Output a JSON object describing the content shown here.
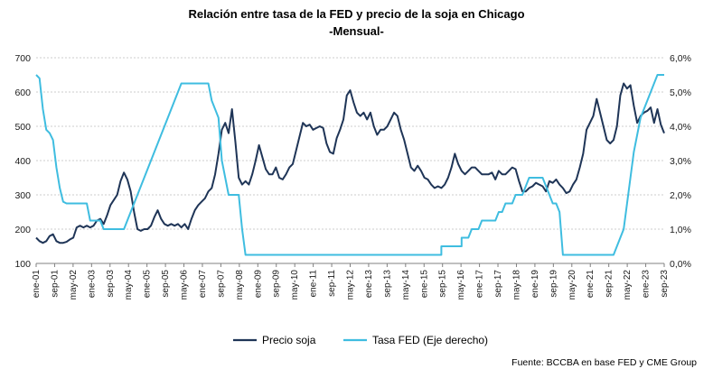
{
  "chart_data": {
    "type": "line",
    "title": "Relación entre tasa de la FED y precio de la soja en Chicago",
    "subtitle": "-Mensual-",
    "source": "Fuente: BCCBA en base FED y CME Group",
    "y_left": {
      "ylim": [
        100,
        700
      ],
      "ticks": [
        "100",
        "200",
        "300",
        "400",
        "500",
        "600",
        "700"
      ]
    },
    "y_right": {
      "ylim": [
        0,
        6
      ],
      "ticks": [
        "0,0%",
        "1,0%",
        "2,0%",
        "3,0%",
        "4,0%",
        "5,0%",
        "6,0%"
      ]
    },
    "x_ticks": [
      "ene-01",
      "sep-01",
      "may-02",
      "ene-03",
      "sep-03",
      "may-04",
      "ene-05",
      "sep-05",
      "may-06",
      "ene-07",
      "sep-07",
      "may-08",
      "ene-09",
      "sep-09",
      "may-10",
      "ene-11",
      "sep-11",
      "may-12",
      "ene-13",
      "sep-13",
      "may-14",
      "ene-15",
      "sep-15",
      "may-16",
      "ene-17",
      "sep-17",
      "may-18",
      "ene-19",
      "sep-19",
      "may-20",
      "ene-21",
      "sep-21",
      "may-22",
      "ene-23",
      "sep-23"
    ],
    "grid": "horizontal dashed",
    "legend_position": "bottom",
    "colors": {
      "soja": "#1f3557",
      "fed": "#3fbde0"
    },
    "series": [
      {
        "name": "Precio soja",
        "axis": "left",
        "points": [
          [
            0,
            175
          ],
          [
            2,
            165
          ],
          [
            4,
            160
          ],
          [
            6,
            165
          ],
          [
            8,
            180
          ],
          [
            10,
            185
          ],
          [
            12,
            165
          ],
          [
            14,
            160
          ],
          [
            16,
            160
          ],
          [
            18,
            163
          ],
          [
            20,
            170
          ],
          [
            22,
            175
          ],
          [
            24,
            205
          ],
          [
            26,
            210
          ],
          [
            28,
            205
          ],
          [
            30,
            210
          ],
          [
            32,
            205
          ],
          [
            34,
            210
          ],
          [
            36,
            225
          ],
          [
            38,
            230
          ],
          [
            40,
            215
          ],
          [
            42,
            240
          ],
          [
            44,
            270
          ],
          [
            46,
            285
          ],
          [
            48,
            300
          ],
          [
            50,
            340
          ],
          [
            52,
            365
          ],
          [
            54,
            345
          ],
          [
            56,
            310
          ],
          [
            58,
            250
          ],
          [
            60,
            200
          ],
          [
            62,
            195
          ],
          [
            64,
            200
          ],
          [
            66,
            200
          ],
          [
            68,
            210
          ],
          [
            70,
            235
          ],
          [
            72,
            255
          ],
          [
            74,
            230
          ],
          [
            76,
            215
          ],
          [
            78,
            210
          ],
          [
            80,
            215
          ],
          [
            82,
            210
          ],
          [
            84,
            215
          ],
          [
            86,
            205
          ],
          [
            88,
            215
          ],
          [
            90,
            200
          ],
          [
            92,
            230
          ],
          [
            94,
            255
          ],
          [
            96,
            270
          ],
          [
            98,
            280
          ],
          [
            100,
            290
          ],
          [
            102,
            310
          ],
          [
            104,
            320
          ],
          [
            106,
            360
          ],
          [
            108,
            420
          ],
          [
            110,
            490
          ],
          [
            112,
            510
          ],
          [
            114,
            480
          ],
          [
            116,
            550
          ],
          [
            118,
            455
          ],
          [
            120,
            350
          ],
          [
            122,
            330
          ],
          [
            124,
            340
          ],
          [
            126,
            330
          ],
          [
            128,
            360
          ],
          [
            130,
            400
          ],
          [
            132,
            445
          ],
          [
            134,
            410
          ],
          [
            136,
            375
          ],
          [
            138,
            360
          ],
          [
            140,
            360
          ],
          [
            142,
            380
          ],
          [
            144,
            350
          ],
          [
            146,
            345
          ],
          [
            148,
            360
          ],
          [
            150,
            380
          ],
          [
            152,
            390
          ],
          [
            154,
            430
          ],
          [
            156,
            470
          ],
          [
            158,
            510
          ],
          [
            160,
            500
          ],
          [
            162,
            505
          ],
          [
            164,
            490
          ],
          [
            166,
            495
          ],
          [
            168,
            500
          ],
          [
            170,
            495
          ],
          [
            172,
            450
          ],
          [
            174,
            425
          ],
          [
            176,
            420
          ],
          [
            178,
            465
          ],
          [
            180,
            490
          ],
          [
            182,
            520
          ],
          [
            184,
            590
          ],
          [
            186,
            605
          ],
          [
            188,
            570
          ],
          [
            190,
            540
          ],
          [
            192,
            530
          ],
          [
            194,
            540
          ],
          [
            196,
            520
          ],
          [
            198,
            540
          ],
          [
            200,
            500
          ],
          [
            202,
            475
          ],
          [
            204,
            490
          ],
          [
            206,
            490
          ],
          [
            208,
            500
          ],
          [
            210,
            520
          ],
          [
            212,
            540
          ],
          [
            214,
            530
          ],
          [
            216,
            490
          ],
          [
            218,
            460
          ],
          [
            220,
            420
          ],
          [
            222,
            380
          ],
          [
            224,
            370
          ],
          [
            226,
            385
          ],
          [
            228,
            370
          ],
          [
            230,
            350
          ],
          [
            232,
            345
          ],
          [
            234,
            330
          ],
          [
            236,
            320
          ],
          [
            238,
            325
          ],
          [
            240,
            320
          ],
          [
            242,
            330
          ],
          [
            244,
            350
          ],
          [
            246,
            380
          ],
          [
            248,
            420
          ],
          [
            250,
            390
          ],
          [
            252,
            370
          ],
          [
            254,
            360
          ],
          [
            256,
            370
          ],
          [
            258,
            380
          ],
          [
            260,
            380
          ],
          [
            262,
            370
          ],
          [
            264,
            360
          ],
          [
            266,
            360
          ],
          [
            268,
            360
          ],
          [
            270,
            365
          ],
          [
            272,
            345
          ],
          [
            274,
            370
          ],
          [
            276,
            360
          ],
          [
            278,
            360
          ],
          [
            280,
            370
          ],
          [
            282,
            380
          ],
          [
            284,
            375
          ],
          [
            286,
            340
          ],
          [
            288,
            310
          ],
          [
            290,
            310
          ],
          [
            292,
            320
          ],
          [
            294,
            325
          ],
          [
            296,
            335
          ],
          [
            298,
            330
          ],
          [
            300,
            325
          ],
          [
            302,
            310
          ],
          [
            304,
            340
          ],
          [
            306,
            335
          ],
          [
            308,
            345
          ],
          [
            310,
            330
          ],
          [
            312,
            320
          ],
          [
            314,
            305
          ],
          [
            316,
            310
          ],
          [
            318,
            330
          ],
          [
            320,
            345
          ],
          [
            322,
            380
          ],
          [
            324,
            420
          ],
          [
            326,
            490
          ],
          [
            328,
            510
          ],
          [
            330,
            530
          ],
          [
            332,
            580
          ],
          [
            334,
            540
          ],
          [
            336,
            500
          ],
          [
            338,
            460
          ],
          [
            340,
            450
          ],
          [
            342,
            460
          ],
          [
            344,
            500
          ],
          [
            346,
            590
          ],
          [
            348,
            625
          ],
          [
            350,
            610
          ],
          [
            352,
            620
          ],
          [
            354,
            560
          ],
          [
            356,
            510
          ],
          [
            358,
            530
          ],
          [
            360,
            540
          ],
          [
            362,
            545
          ],
          [
            364,
            555
          ],
          [
            366,
            510
          ],
          [
            368,
            550
          ],
          [
            370,
            505
          ],
          [
            372,
            480
          ]
        ]
      },
      {
        "name": "Tasa FED (Eje derecho)",
        "axis": "right",
        "points": [
          [
            0,
            5.5
          ],
          [
            2,
            5.4
          ],
          [
            4,
            4.5
          ],
          [
            6,
            3.9
          ],
          [
            8,
            3.8
          ],
          [
            10,
            3.6
          ],
          [
            12,
            2.8
          ],
          [
            14,
            2.2
          ],
          [
            16,
            1.8
          ],
          [
            18,
            1.75
          ],
          [
            20,
            1.75
          ],
          [
            22,
            1.75
          ],
          [
            24,
            1.75
          ],
          [
            26,
            1.75
          ],
          [
            28,
            1.75
          ],
          [
            30,
            1.75
          ],
          [
            32,
            1.25
          ],
          [
            34,
            1.25
          ],
          [
            36,
            1.25
          ],
          [
            38,
            1.25
          ],
          [
            40,
            1.0
          ],
          [
            42,
            1.0
          ],
          [
            44,
            1.0
          ],
          [
            46,
            1.0
          ],
          [
            48,
            1.0
          ],
          [
            50,
            1.0
          ],
          [
            52,
            1.0
          ],
          [
            54,
            1.25
          ],
          [
            56,
            1.5
          ],
          [
            58,
            1.75
          ],
          [
            60,
            2.0
          ],
          [
            62,
            2.25
          ],
          [
            64,
            2.5
          ],
          [
            66,
            2.75
          ],
          [
            68,
            3.0
          ],
          [
            70,
            3.25
          ],
          [
            72,
            3.5
          ],
          [
            74,
            3.75
          ],
          [
            76,
            4.0
          ],
          [
            78,
            4.25
          ],
          [
            80,
            4.5
          ],
          [
            82,
            4.75
          ],
          [
            84,
            5.0
          ],
          [
            86,
            5.25
          ],
          [
            88,
            5.25
          ],
          [
            90,
            5.25
          ],
          [
            92,
            5.25
          ],
          [
            94,
            5.25
          ],
          [
            96,
            5.25
          ],
          [
            98,
            5.25
          ],
          [
            100,
            5.25
          ],
          [
            102,
            5.25
          ],
          [
            104,
            4.75
          ],
          [
            106,
            4.5
          ],
          [
            108,
            4.25
          ],
          [
            110,
            3.0
          ],
          [
            112,
            2.5
          ],
          [
            114,
            2.0
          ],
          [
            116,
            2.0
          ],
          [
            118,
            2.0
          ],
          [
            120,
            2.0
          ],
          [
            122,
            1.0
          ],
          [
            124,
            0.25
          ],
          [
            126,
            0.25
          ],
          [
            128,
            0.25
          ],
          [
            150,
            0.25
          ],
          [
            170,
            0.25
          ],
          [
            190,
            0.25
          ],
          [
            210,
            0.25
          ],
          [
            230,
            0.25
          ],
          [
            240,
            0.25
          ],
          [
            240,
            0.5
          ],
          [
            250,
            0.5
          ],
          [
            252,
            0.5
          ],
          [
            252,
            0.75
          ],
          [
            256,
            0.75
          ],
          [
            258,
            1.0
          ],
          [
            262,
            1.0
          ],
          [
            264,
            1.25
          ],
          [
            272,
            1.25
          ],
          [
            274,
            1.5
          ],
          [
            276,
            1.5
          ],
          [
            278,
            1.75
          ],
          [
            282,
            1.75
          ],
          [
            284,
            2.0
          ],
          [
            288,
            2.0
          ],
          [
            290,
            2.25
          ],
          [
            292,
            2.5
          ],
          [
            300,
            2.5
          ],
          [
            302,
            2.25
          ],
          [
            304,
            2.0
          ],
          [
            306,
            1.75
          ],
          [
            308,
            1.75
          ],
          [
            310,
            1.5
          ],
          [
            312,
            0.25
          ],
          [
            318,
            0.25
          ],
          [
            330,
            0.25
          ],
          [
            342,
            0.25
          ],
          [
            344,
            0.5
          ],
          [
            346,
            0.75
          ],
          [
            348,
            1.0
          ],
          [
            350,
            1.75
          ],
          [
            352,
            2.5
          ],
          [
            354,
            3.25
          ],
          [
            356,
            3.75
          ],
          [
            358,
            4.25
          ],
          [
            360,
            4.5
          ],
          [
            362,
            4.75
          ],
          [
            364,
            5.0
          ],
          [
            366,
            5.25
          ],
          [
            368,
            5.5
          ],
          [
            372,
            5.5
          ]
        ]
      }
    ]
  }
}
